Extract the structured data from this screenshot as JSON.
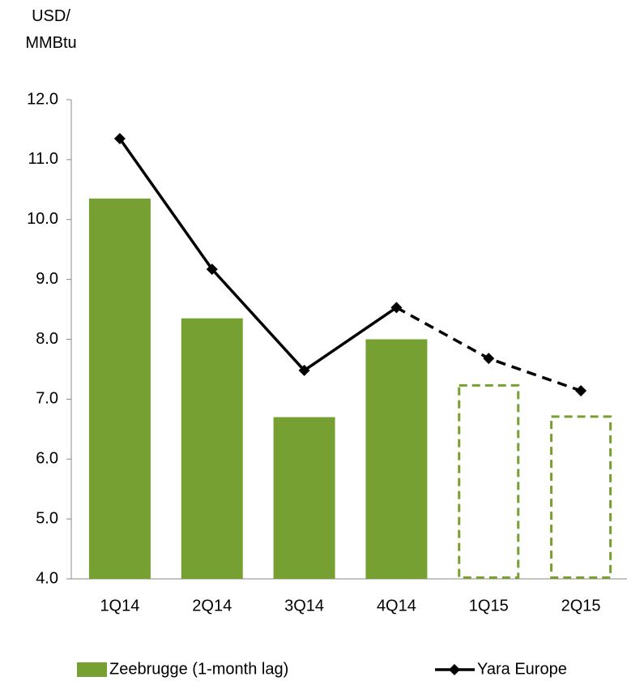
{
  "chart_data": {
    "type": "bar_line",
    "y_label": "USD/\nMMBtu",
    "categories": [
      "1Q14",
      "2Q14",
      "3Q14",
      "4Q14",
      "1Q15",
      "2Q15"
    ],
    "projected": [
      false,
      false,
      false,
      false,
      true,
      true
    ],
    "series": [
      {
        "name": "Zeebrugge (1-month lag)",
        "type": "bar",
        "color": "#77a033",
        "values": [
          10.35,
          8.35,
          6.7,
          8.0,
          7.25,
          6.73
        ]
      },
      {
        "name": "Yara Europe",
        "type": "line",
        "color": "#000000",
        "values": [
          11.35,
          9.17,
          7.48,
          8.53,
          7.68,
          7.14
        ]
      }
    ],
    "ylim": [
      4,
      12
    ],
    "yticks": [
      {
        "value": 4,
        "label": "4.0"
      },
      {
        "value": 5,
        "label": "5.0"
      },
      {
        "value": 6,
        "label": "6.0"
      },
      {
        "value": 7,
        "label": "7.0"
      },
      {
        "value": 8,
        "label": "8.0"
      },
      {
        "value": 9,
        "label": "9.0"
      },
      {
        "value": 10,
        "label": "10.0"
      },
      {
        "value": 11,
        "label": "11.0"
      },
      {
        "value": 12,
        "label": "12.0"
      }
    ],
    "grid": false
  }
}
